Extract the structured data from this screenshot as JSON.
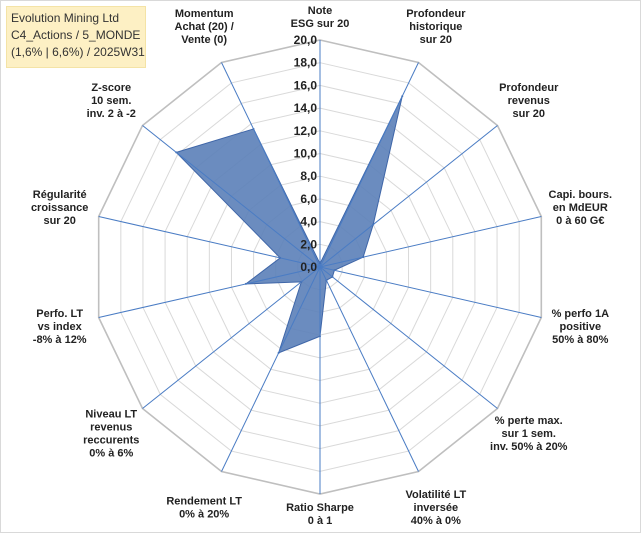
{
  "title_box": {
    "line1": "Evolution Mining Ltd",
    "line2": "C4_Actions / 5_MONDE",
    "line3": "(1,6% | 6,6%) / 2025W31"
  },
  "chart_data": {
    "type": "radar",
    "rmin": 0,
    "rmax": 20,
    "tick_step": 2,
    "grid": true,
    "tick_labels": [
      "0,0",
      "2,0",
      "4,0",
      "6,0",
      "8,0",
      "10,0",
      "12,0",
      "14,0",
      "16,0",
      "18,0",
      "20,0"
    ],
    "axes": [
      [
        "Note",
        "ESG sur 20"
      ],
      [
        "Profondeur",
        "historique",
        "sur 20"
      ],
      [
        "Profondeur",
        "revenus",
        "sur 20"
      ],
      [
        "Capi. bours.",
        "en MdEUR",
        "0 à 60 G€"
      ],
      [
        "% perfo 1A",
        "positive",
        "50% à 80%"
      ],
      [
        "% perte max.",
        "sur 1 sem.",
        "inv. 50% à 20%"
      ],
      [
        "Volatilité LT",
        "inversée",
        "40% à 0%"
      ],
      [
        "Ratio Sharpe",
        "0 à 1"
      ],
      [
        "Rendement LT",
        "0% à 20%"
      ],
      [
        "Niveau LT",
        "revenus",
        "reccurents",
        "0% à 6%"
      ],
      [
        "Perfo. LT",
        "vs index",
        "-8% à 12%"
      ],
      [
        "Régularité",
        "croissance",
        "sur 20"
      ],
      [
        "Z-score",
        "10 sem.",
        "inv. 2 à -2"
      ],
      [
        "Momentum",
        "Achat (20) /",
        "Vente (0)"
      ]
    ],
    "values": [
      0.3,
      16.7,
      6.0,
      3.9,
      1.3,
      1.4,
      1.3,
      6.1,
      8.4,
      2.1,
      6.7,
      3.6,
      16.2,
      13.5
    ],
    "series_color": "#5b7fb8",
    "series_stroke": "#3f66a8",
    "axis_color": "#4a7cc4",
    "grid_color": "#d9d9d9"
  }
}
